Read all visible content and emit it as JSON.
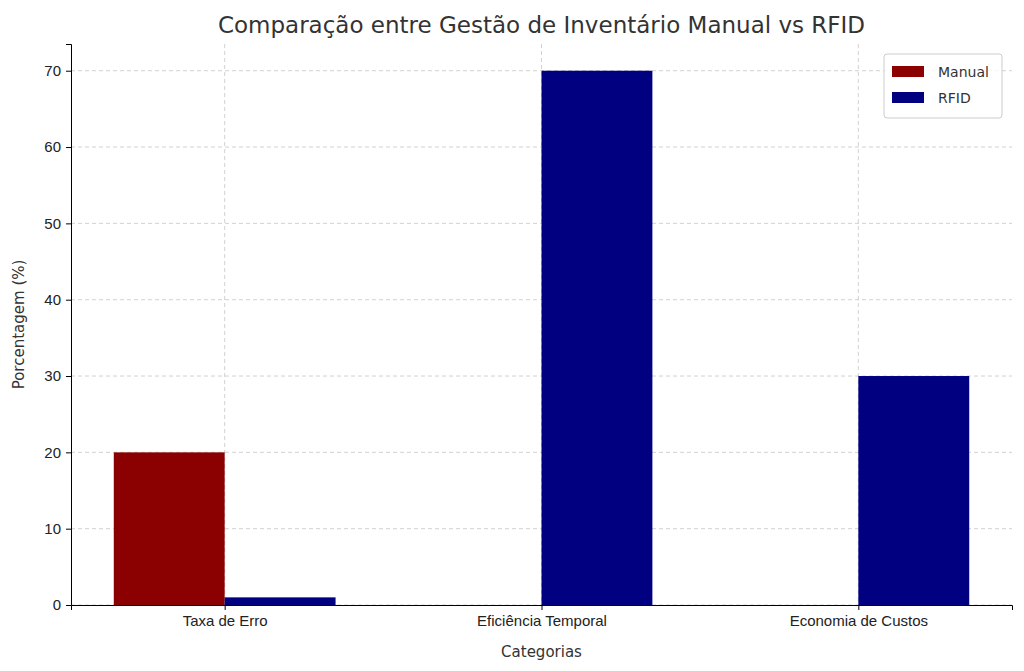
{
  "chart_data": {
    "type": "bar",
    "title": "Comparação entre Gestão de Inventário Manual vs RFID",
    "x_label": "Categorias",
    "y_label": "Porcentagem (%)",
    "categories": [
      "Taxa de Erro",
      "Eficiência Temporal",
      "Economia de Custos"
    ],
    "series": [
      {
        "name": "Manual",
        "color": "#8b0000",
        "values": [
          20,
          0,
          0
        ]
      },
      {
        "name": "RFID",
        "color": "#000080",
        "values": [
          1,
          70,
          30
        ]
      }
    ],
    "ylim": [
      0,
      73.5
    ],
    "yticks": [
      0,
      10,
      20,
      30,
      40,
      50,
      60,
      70
    ],
    "grid": true,
    "legend": "upper right"
  }
}
